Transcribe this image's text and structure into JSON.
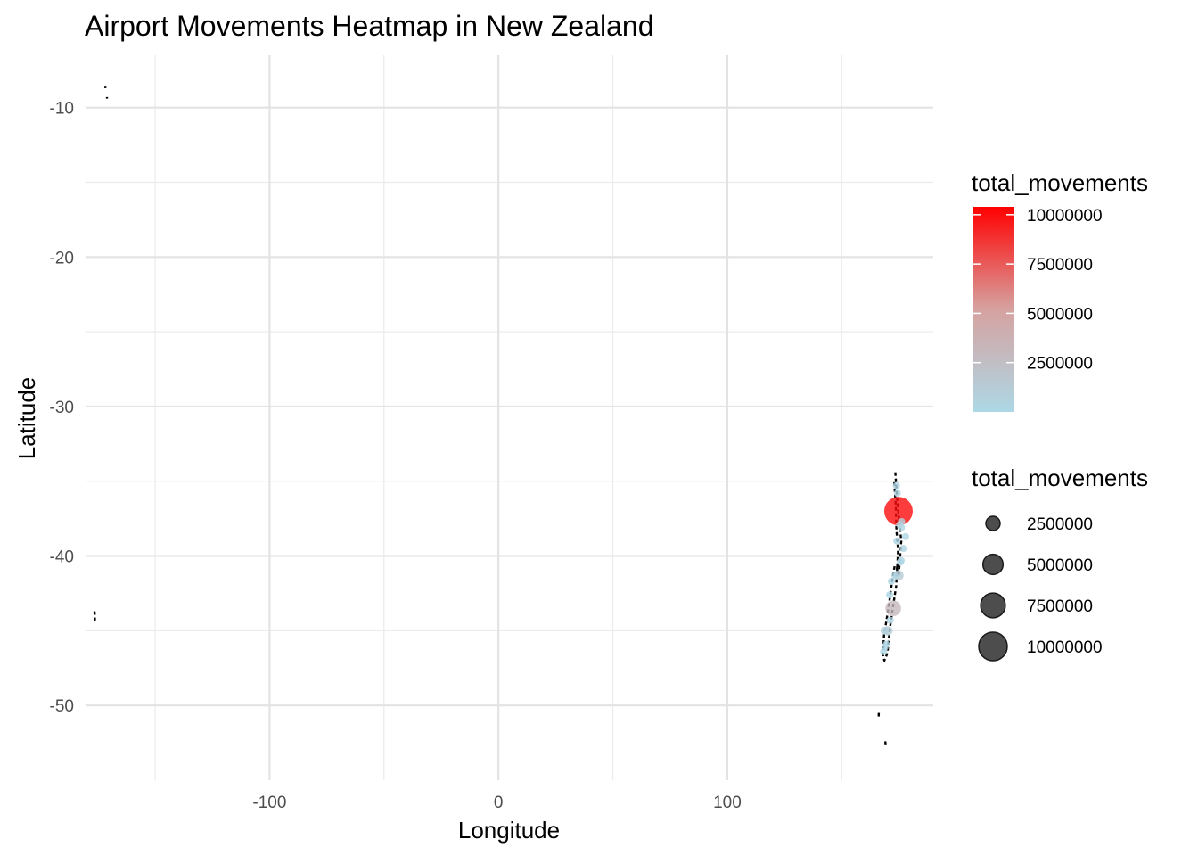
{
  "chart_data": {
    "type": "scatter",
    "title": "Airport Movements Heatmap in New Zealand",
    "xlabel": "Longitude",
    "ylabel": "Latitude",
    "xlim": [
      -180,
      190
    ],
    "ylim": [
      -55,
      -6.5
    ],
    "x_ticks": [
      -100,
      0,
      100
    ],
    "x_tick_labels": [
      "-100",
      "0",
      "100"
    ],
    "x_minor_ticks": [
      -150,
      -50,
      50,
      150
    ],
    "y_ticks": [
      -10,
      -20,
      -30,
      -40,
      -50
    ],
    "y_tick_labels": [
      "-10",
      "-20",
      "-30",
      "-40",
      "-50"
    ],
    "y_minor_ticks": [
      -15,
      -25,
      -35,
      -45
    ],
    "grid": true,
    "colors": {
      "low": "#add8e6",
      "high": "#ff0000",
      "outline": "#000000"
    },
    "map_outline": [
      {
        "name": "north-island",
        "points": [
          [
            173.4,
            -34.4
          ],
          [
            174.4,
            -36.5
          ],
          [
            175.2,
            -37.8
          ],
          [
            176.0,
            -39.0
          ],
          [
            175.5,
            -40.0
          ],
          [
            174.9,
            -41.3
          ],
          [
            174.2,
            -41.0
          ],
          [
            174.6,
            -39.6
          ],
          [
            173.9,
            -38.3
          ],
          [
            173.6,
            -36.6
          ],
          [
            172.9,
            -34.9
          ]
        ]
      },
      {
        "name": "south-island",
        "points": [
          [
            174.2,
            -40.7
          ],
          [
            173.8,
            -42.0
          ],
          [
            172.3,
            -43.5
          ],
          [
            170.9,
            -45.0
          ],
          [
            170.0,
            -46.5
          ],
          [
            168.6,
            -47.0
          ],
          [
            168.0,
            -46.6
          ],
          [
            168.5,
            -45.3
          ],
          [
            170.4,
            -43.5
          ],
          [
            172.0,
            -41.7
          ],
          [
            173.2,
            -40.6
          ]
        ]
      },
      {
        "name": "chatham-islands",
        "points": [
          [
            -176.5,
            -43.7
          ],
          [
            -176.3,
            -44.1
          ],
          [
            -176.4,
            -44.4
          ]
        ]
      },
      {
        "name": "auckland-islands",
        "points": [
          [
            166.2,
            -50.5
          ],
          [
            166.1,
            -50.9
          ]
        ]
      },
      {
        "name": "campbell-island",
        "points": [
          [
            169.0,
            -52.4
          ],
          [
            169.2,
            -52.6
          ]
        ]
      },
      {
        "name": "tokelau-a",
        "points": [
          [
            -171.8,
            -8.6
          ],
          [
            -171.7,
            -8.7
          ]
        ]
      },
      {
        "name": "tokelau-b",
        "points": [
          [
            -171.1,
            -9.3
          ],
          [
            -171.0,
            -9.4
          ]
        ]
      }
    ],
    "series": [
      {
        "values": [
          {
            "x": 174.8,
            "y": -37.0,
            "movements": 10000000
          },
          {
            "x": 172.5,
            "y": -43.5,
            "movements": 3000000
          },
          {
            "x": 174.8,
            "y": -41.3,
            "movements": 1300000
          },
          {
            "x": 170.2,
            "y": -45.0,
            "movements": 1100000
          },
          {
            "x": 168.7,
            "y": -45.0,
            "movements": 800000
          },
          {
            "x": 175.3,
            "y": -37.9,
            "movements": 500000
          },
          {
            "x": 176.2,
            "y": -37.7,
            "movements": 400000
          },
          {
            "x": 173.9,
            "y": -35.3,
            "movements": 200000
          },
          {
            "x": 174.3,
            "y": -35.8,
            "movements": 200000
          },
          {
            "x": 176.1,
            "y": -38.1,
            "movements": 300000
          },
          {
            "x": 176.9,
            "y": -39.5,
            "movements": 300000
          },
          {
            "x": 176.0,
            "y": -40.3,
            "movements": 200000
          },
          {
            "x": 175.6,
            "y": -40.4,
            "movements": 250000
          },
          {
            "x": 174.1,
            "y": -39.0,
            "movements": 250000
          },
          {
            "x": 177.9,
            "y": -38.7,
            "movements": 150000
          },
          {
            "x": 173.2,
            "y": -41.3,
            "movements": 250000
          },
          {
            "x": 171.2,
            "y": -44.3,
            "movements": 150000
          },
          {
            "x": 168.3,
            "y": -46.4,
            "movements": 200000
          },
          {
            "x": 169.5,
            "y": -45.9,
            "movements": 100000
          },
          {
            "x": 171.7,
            "y": -41.7,
            "movements": 80000
          },
          {
            "x": 170.9,
            "y": -42.6,
            "movements": 100000
          },
          {
            "x": 168.9,
            "y": -46.1,
            "movements": 80000
          }
        ]
      }
    ],
    "legend_color": {
      "title": "total_movements",
      "min": 0,
      "max": 10400000,
      "breaks": [
        10000000,
        7500000,
        5000000,
        2500000
      ],
      "labels": [
        "10000000",
        "7500000",
        "5000000",
        "2500000"
      ]
    },
    "legend_size": {
      "title": "total_movements",
      "breaks": [
        2500000,
        5000000,
        7500000,
        10000000
      ],
      "labels": [
        "2500000",
        "5000000",
        "7500000",
        "10000000"
      ]
    }
  }
}
